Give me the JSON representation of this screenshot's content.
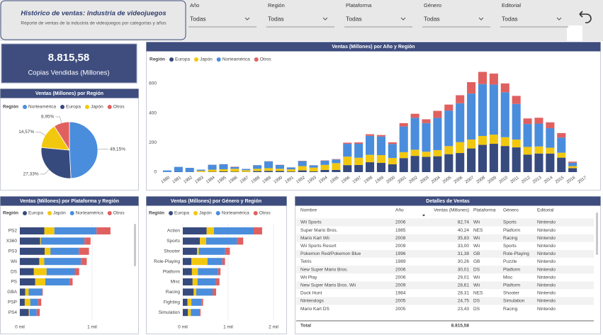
{
  "header": {
    "title": "Histórico de ventas: industria de videojuegos",
    "subtitle": "Reporte de ventas de la industria de videojuegos por categorías y años"
  },
  "filters": [
    {
      "label": "Año",
      "value": "Todas"
    },
    {
      "label": "Región",
      "value": "Todas"
    },
    {
      "label": "Plataforma",
      "value": "Todas"
    },
    {
      "label": "Género",
      "value": "Todas"
    },
    {
      "label": "Editorial",
      "value": "Todas"
    }
  ],
  "kpi": {
    "value": "8.815,58",
    "label": "Copias Vendidas (Millones)"
  },
  "chart_data": [
    {
      "type": "pie",
      "title": "Ventas (Millones) por Región",
      "legend_title": "Región",
      "categories": [
        "Norteamérica",
        "Europa",
        "Japón",
        "Otros"
      ],
      "values": [
        49.15,
        27.33,
        14.57,
        8.95
      ],
      "value_labels": [
        "49,15%",
        "27,33%",
        "14,57%",
        "8,95%"
      ],
      "colors": [
        "#4a8ddc",
        "#374a7d",
        "#f2c80f",
        "#e06060"
      ]
    },
    {
      "type": "bar",
      "stacked": true,
      "title": "Ventas (Millones) por Año y Región",
      "legend_title": "Región",
      "categories": [
        "1980",
        "1981",
        "1982",
        "1983",
        "1984",
        "1985",
        "1986",
        "1987",
        "1988",
        "1989",
        "1990",
        "1991",
        "1992",
        "1993",
        "1994",
        "1995",
        "1996",
        "1997",
        "1998",
        "1999",
        "2000",
        "2001",
        "2002",
        "2003",
        "2004",
        "2005",
        "2006",
        "2007",
        "2008",
        "2009",
        "2010",
        "2011",
        "2012",
        "2013",
        "2014",
        "2015",
        "2016",
        "2017"
      ],
      "series": [
        {
          "name": "Europa",
          "color": "#374a7d",
          "values": [
            0.7,
            2.0,
            1.7,
            0.8,
            2.1,
            4.7,
            2.8,
            1.4,
            6.6,
            8.4,
            7.6,
            3.9,
            11.7,
            4.7,
            14.9,
            14.9,
            47.3,
            48.3,
            66.9,
            62.7,
            52.8,
            94.9,
            109.7,
            103.8,
            107.3,
            121.5,
            129.2,
            160.2,
            184.4,
            191.6,
            176.7,
            167.4,
            118.8,
            125.8,
            125.7,
            97.7,
            26.8,
            0
          ]
        },
        {
          "name": "Japón",
          "color": "#f2c80f",
          "values": [
            0,
            0,
            0,
            8.1,
            14.3,
            14.6,
            19.8,
            11.6,
            15.8,
            18.4,
            15.0,
            14.9,
            29.0,
            25.7,
            33.9,
            45.8,
            57.4,
            48.9,
            50.0,
            52.3,
            42.8,
            40.0,
            41.8,
            34.2,
            41.7,
            54.3,
            73.7,
            60.3,
            60.3,
            61.9,
            59.5,
            53.0,
            51.8,
            47.6,
            39.5,
            33.7,
            13.7,
            0.05
          ]
        },
        {
          "name": "Norteamérica",
          "color": "#4a8ddc",
          "values": [
            10.6,
            33.4,
            26.9,
            7.8,
            33.3,
            33.7,
            12.5,
            8.5,
            23.9,
            45.2,
            25.5,
            12.8,
            33.9,
            15.1,
            28.2,
            24.8,
            86.8,
            94.8,
            128.4,
            126.1,
            94.5,
            173.9,
            216.2,
            193.6,
            218.3,
            240.9,
            263.1,
            311.2,
            351.4,
            338.9,
            304.2,
            241.2,
            154.9,
            154.8,
            131.9,
            102.8,
            22.7,
            0
          ]
        },
        {
          "name": "Otros",
          "color": "#e06060",
          "values": [
            0.1,
            0.3,
            0.3,
            0.1,
            0.7,
            0.9,
            1.9,
            0.2,
            1.0,
            1.4,
            1.4,
            0.4,
            1.7,
            0.9,
            2.2,
            2.6,
            7.7,
            9.1,
            11.0,
            10.0,
            11.6,
            22.8,
            27.3,
            26.0,
            47.3,
            40.5,
            54.4,
            77.2,
            82.4,
            74.8,
            59.9,
            54.4,
            37.8,
            39.8,
            40.0,
            30.0,
            7.8,
            0
          ]
        }
      ],
      "ylim": [
        0,
        700
      ],
      "yticks": [
        0,
        200,
        400,
        600
      ],
      "grid": false
    },
    {
      "type": "bar",
      "orientation": "horizontal",
      "stacked": true,
      "title": "Ventas (Millones) por Plataforma y Región",
      "legend_title": "Región",
      "categories": [
        "PS2",
        "X360",
        "PS3",
        "Wii",
        "DS",
        "PS",
        "GBA",
        "PSP",
        "PS4"
      ],
      "series": [
        {
          "name": "Europa",
          "color": "#374a7d",
          "values": [
            339,
            280,
            343,
            269,
            194,
            213,
            75,
            68,
            123
          ]
        },
        {
          "name": "Japón",
          "color": "#f2c80f",
          "values": [
            139,
            12.4,
            80,
            69,
            176,
            140,
            47,
            76,
            14
          ]
        },
        {
          "name": "Norteamérica",
          "color": "#4a8ddc",
          "values": [
            583,
            601,
            393,
            507,
            390,
            336,
            188,
            109,
            96
          ]
        },
        {
          "name": "Otros",
          "color": "#e06060",
          "values": [
            193,
            85,
            141,
            81,
            61,
            41,
            8,
            43,
            43
          ]
        }
      ],
      "xlim": [
        0,
        1500
      ],
      "xticks": [
        {
          "value": 0,
          "label": "0 mil"
        },
        {
          "value": 1000,
          "label": "1 mil"
        }
      ],
      "grid": true
    },
    {
      "type": "bar",
      "orientation": "horizontal",
      "stacked": true,
      "title": "Ventas (Millones) por Género y Región",
      "legend_title": "Región",
      "categories": [
        "Action",
        "Sports",
        "Shooter",
        "Role-Playing",
        "Platform",
        "Misc",
        "Racing",
        "Fighting",
        "Simulation"
      ],
      "series": [
        {
          "name": "Europa",
          "color": "#374a7d",
          "values": [
            525,
            377,
            314,
            188,
            201,
            216,
            239,
            101,
            113
          ]
        },
        {
          "name": "Japón",
          "color": "#f2c80f",
          "values": [
            160,
            136,
            39,
            356,
            131,
            107,
            57,
            88,
            64
          ]
        },
        {
          "name": "Norteamérica",
          "color": "#4a8ddc",
          "values": [
            877,
            684,
            582,
            327,
            447,
            410,
            360,
            221,
            183
          ]
        },
        {
          "name": "Otros",
          "color": "#e06060",
          "values": [
            187,
            135,
            103,
            60,
            52,
            75,
            78,
            37,
            32
          ]
        }
      ],
      "xlim": [
        0,
        2150
      ],
      "xticks": [
        {
          "value": 0,
          "label": "0 mil"
        },
        {
          "value": 1000,
          "label": "1 mil"
        },
        {
          "value": 2000,
          "label": "2 mil"
        }
      ],
      "grid": true
    }
  ],
  "table": {
    "title": "Detalles de Ventas",
    "columns": [
      "Nombre",
      "Año",
      "Ventas (Millones)",
      "Plataforma",
      "Género",
      "Editorial"
    ],
    "rows": [
      [
        "Wii Sports",
        "2006",
        "82,74",
        "Wii",
        "Sports",
        "Nintendo"
      ],
      [
        "Super Mario Bros.",
        "1985",
        "40,24",
        "NES",
        "Platform",
        "Nintendo"
      ],
      [
        "Mario Kart Wii",
        "2008",
        "35,83",
        "Wii",
        "Racing",
        "Nintendo"
      ],
      [
        "Wii Sports Resort",
        "2009",
        "33,00",
        "Wii",
        "Sports",
        "Nintendo"
      ],
      [
        "Pokemon Red/Pokemon Blue",
        "1996",
        "31,38",
        "GB",
        "Role-Playing",
        "Nintendo"
      ],
      [
        "Tetris",
        "1989",
        "30,26",
        "GB",
        "Puzzle",
        "Nintendo"
      ],
      [
        "New Super Mario Bros.",
        "2006",
        "30,01",
        "DS",
        "Platform",
        "Nintendo"
      ],
      [
        "Wii Play",
        "2006",
        "29,01",
        "Wii",
        "Misc",
        "Nintendo"
      ],
      [
        "New Super Mario Bros. Wii",
        "2009",
        "28,61",
        "Wii",
        "Platform",
        "Nintendo"
      ],
      [
        "Duck Hunt",
        "1984",
        "28,31",
        "NES",
        "Shooter",
        "Nintendo"
      ],
      [
        "Nintendogs",
        "2005",
        "24,75",
        "DS",
        "Simulation",
        "Nintendo"
      ],
      [
        "Mario Kart DS",
        "2005",
        "23,43",
        "DS",
        "Racing",
        "Nintendo"
      ]
    ],
    "total": {
      "label": "Total",
      "value": "8.815,58"
    }
  }
}
